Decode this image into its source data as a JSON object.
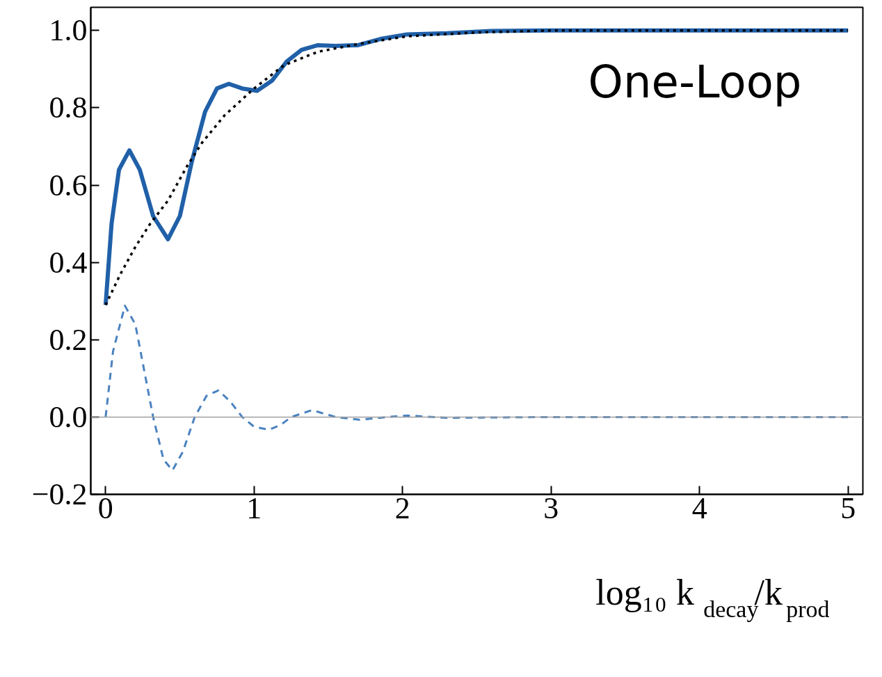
{
  "chart_data": {
    "type": "line",
    "xlabel": "log₁₀ k$_{decay}$/k$_{prod}$",
    "xlim": [
      -0.1,
      5.1
    ],
    "ylim": [
      -0.2,
      1.06
    ],
    "xticks": [
      0,
      1,
      2,
      3,
      4,
      5
    ],
    "yticks": [
      {
        "value": -0.2,
        "label": "−0.2"
      },
      {
        "value": 0,
        "label": "0.0"
      },
      {
        "value": 0.2,
        "label": "0.2"
      },
      {
        "value": 0.4,
        "label": "0.4"
      },
      {
        "value": 0.6,
        "label": "0.6"
      },
      {
        "value": 0.8,
        "label": "0.8"
      },
      {
        "value": 1.0,
        "label": "1.0"
      }
    ],
    "grid": false,
    "annotations": [
      "One-Loop"
    ],
    "ref_lines": [
      {
        "axis": "y",
        "value": 0,
        "color": "#a0a0a0",
        "line_style": "solid"
      }
    ],
    "series": [
      {
        "color": "#2060a8",
        "line_style": "solid",
        "x": [
          0,
          0.04,
          0.09,
          0.16,
          0.23,
          0.32,
          0.42,
          0.5,
          0.58,
          0.67,
          0.75,
          0.83,
          0.92,
          1.02,
          1.12,
          1.22,
          1.32,
          1.43,
          1.55,
          1.7,
          1.85,
          2.03,
          2.3,
          2.6,
          3,
          4,
          5
        ],
        "values": [
          0.29,
          0.5,
          0.64,
          0.69,
          0.64,
          0.52,
          0.46,
          0.52,
          0.66,
          0.79,
          0.85,
          0.862,
          0.85,
          0.844,
          0.87,
          0.92,
          0.95,
          0.962,
          0.96,
          0.962,
          0.978,
          0.99,
          0.993,
          0.999,
          1,
          1,
          1
        ]
      },
      {
        "color": "#000000",
        "line_style": "dotted",
        "x": [
          0,
          0.1,
          0.2,
          0.3,
          0.42,
          0.55,
          0.65,
          0.8,
          1.0,
          1.2,
          1.43,
          1.7,
          2.03,
          2.5,
          3,
          5
        ],
        "values": [
          0.29,
          0.37,
          0.44,
          0.5,
          0.56,
          0.65,
          0.71,
          0.78,
          0.85,
          0.91,
          0.945,
          0.965,
          0.985,
          0.995,
          1,
          1
        ]
      },
      {
        "color": "#4a82c0",
        "line_style": "dashed",
        "x": [
          0,
          0.05,
          0.13,
          0.2,
          0.32,
          0.39,
          0.45,
          0.52,
          0.6,
          0.68,
          0.76,
          0.84,
          0.92,
          1.0,
          1.1,
          1.18,
          1.25,
          1.39,
          1.55,
          1.71,
          1.9,
          2.03,
          2.3,
          3,
          5
        ],
        "values": [
          0,
          0.17,
          0.288,
          0.24,
          0,
          -0.11,
          -0.138,
          -0.09,
          0,
          0.055,
          0.069,
          0.04,
          0,
          -0.025,
          -0.033,
          -0.02,
          0,
          0.018,
          0,
          -0.007,
          0,
          0.004,
          -0.002,
          0,
          0
        ]
      }
    ]
  }
}
